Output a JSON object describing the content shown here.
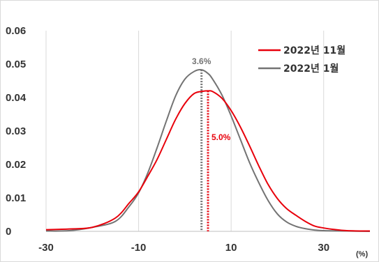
{
  "chart_data": {
    "type": "line",
    "xlabel_unit": "(%)",
    "xlim": [
      -30,
      40
    ],
    "ylim": [
      0,
      0.06
    ],
    "x_ticks": [
      "-30",
      "-10",
      "10",
      "30"
    ],
    "y_ticks": [
      "0",
      "0.01",
      "0.02",
      "0.03",
      "0.04",
      "0.05",
      "0.06"
    ],
    "grid": "vertical",
    "legend_position": "top-right",
    "series": [
      {
        "name": "2022년 11월",
        "color": "#e8000b",
        "mean": 5.0,
        "points": [
          [
            -30,
            0.0005
          ],
          [
            -25,
            0.0007
          ],
          [
            -20,
            0.0012
          ],
          [
            -15,
            0.004
          ],
          [
            -12,
            0.0085
          ],
          [
            -10,
            0.0118
          ],
          [
            -8,
            0.0165
          ],
          [
            -6,
            0.0215
          ],
          [
            -4,
            0.0275
          ],
          [
            -2,
            0.0335
          ],
          [
            0,
            0.0382
          ],
          [
            2,
            0.0412
          ],
          [
            4,
            0.0419
          ],
          [
            5,
            0.042
          ],
          [
            6,
            0.0418
          ],
          [
            8,
            0.0398
          ],
          [
            10,
            0.0361
          ],
          [
            12,
            0.0312
          ],
          [
            14,
            0.0255
          ],
          [
            16,
            0.0195
          ],
          [
            18,
            0.014
          ],
          [
            20,
            0.0098
          ],
          [
            22,
            0.0068
          ],
          [
            24,
            0.0048
          ],
          [
            26,
            0.003
          ],
          [
            28,
            0.0016
          ],
          [
            30,
            0.001
          ],
          [
            32,
            0.0006
          ],
          [
            35,
            0.0002
          ],
          [
            40,
            0.0001
          ]
        ]
      },
      {
        "name": "2022년 1월",
        "color": "#737373",
        "mean": 3.6,
        "points": [
          [
            -30,
            0.0001
          ],
          [
            -25,
            0.0002
          ],
          [
            -20,
            0.0012
          ],
          [
            -15,
            0.003
          ],
          [
            -12,
            0.0075
          ],
          [
            -10,
            0.0115
          ],
          [
            -8,
            0.0175
          ],
          [
            -6,
            0.025
          ],
          [
            -4,
            0.033
          ],
          [
            -2,
            0.0405
          ],
          [
            0,
            0.0455
          ],
          [
            2,
            0.0478
          ],
          [
            3.6,
            0.0483
          ],
          [
            5,
            0.0472
          ],
          [
            6,
            0.0455
          ],
          [
            8,
            0.0408
          ],
          [
            10,
            0.0345
          ],
          [
            12,
            0.0275
          ],
          [
            14,
            0.0205
          ],
          [
            16,
            0.0145
          ],
          [
            18,
            0.0092
          ],
          [
            20,
            0.0052
          ],
          [
            22,
            0.0028
          ],
          [
            24,
            0.0015
          ],
          [
            26,
            0.0008
          ],
          [
            28,
            0.0004
          ],
          [
            30,
            0.0002
          ],
          [
            35,
            0.0001
          ],
          [
            40,
            0.0
          ]
        ]
      }
    ],
    "annotations": [
      {
        "text": "3.6%",
        "x": 3.6,
        "color": "#737373"
      },
      {
        "text": "5.0%",
        "x": 5.0,
        "color": "#e8000b"
      }
    ]
  }
}
